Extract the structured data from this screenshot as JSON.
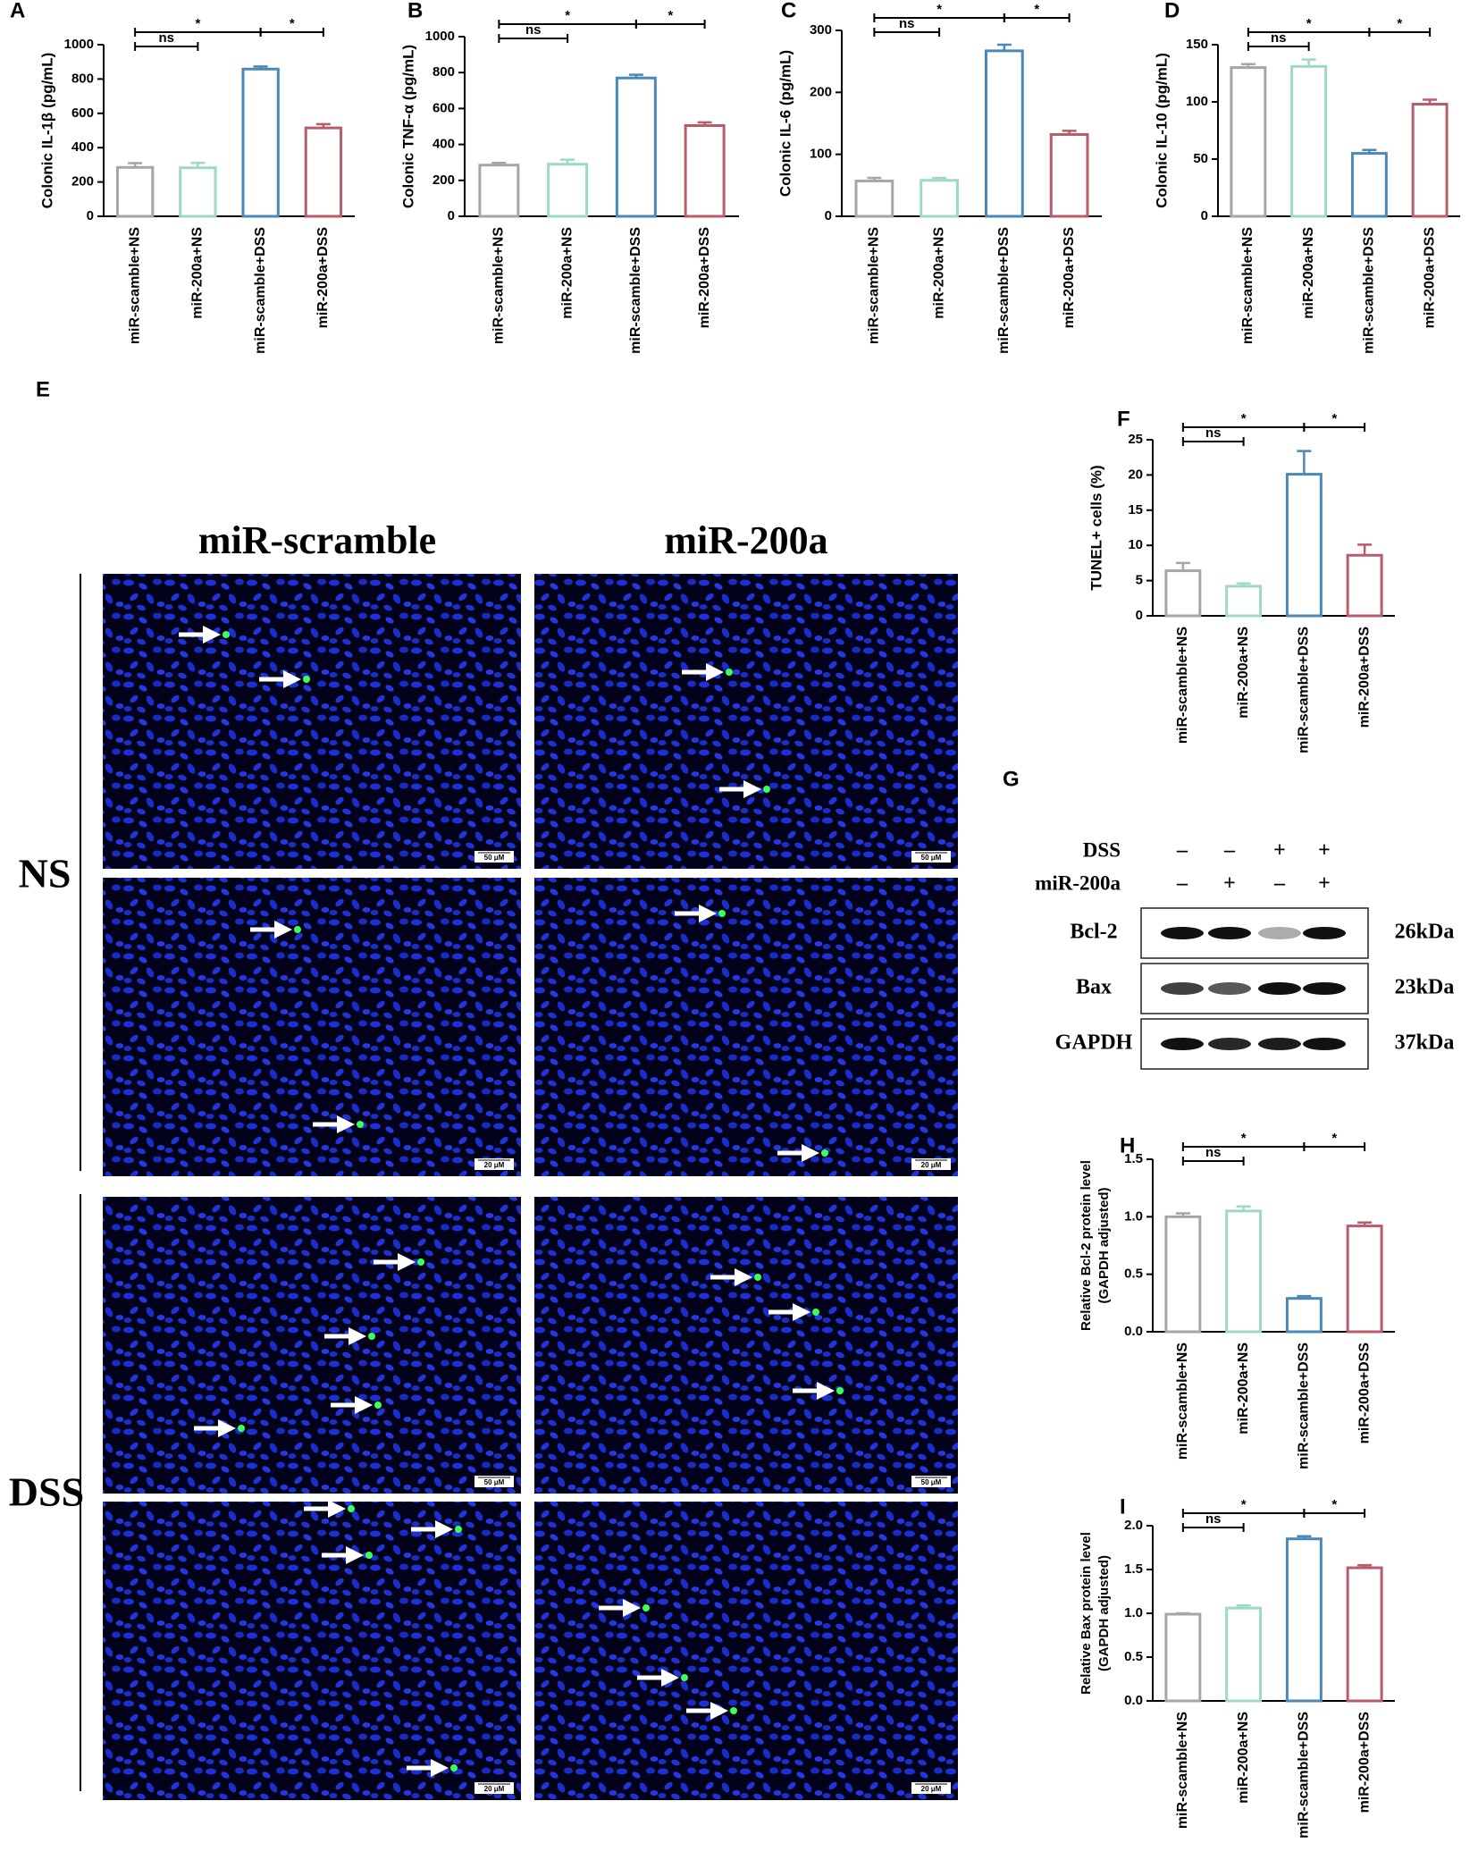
{
  "chart_data": [
    {
      "type": "bar",
      "panel": "A",
      "y_label": [
        "Colonic IL-1β (pg/mL)"
      ],
      "categories": [
        "miR-scamble+NS",
        "miR-200a+NS",
        "miR-scamble+DSS",
        "miR-200a+DSS"
      ],
      "values": [
        285,
        283,
        858,
        515
      ],
      "errors": [
        25,
        28,
        15,
        22
      ],
      "colors": [
        "#a6a6a6",
        "#9dd9c5",
        "#4a88b8",
        "#b85c6a"
      ],
      "ylim": [
        0,
        1000
      ],
      "yticks": [
        0,
        200,
        400,
        600,
        800,
        1000
      ],
      "annotations": [
        "ns",
        "*",
        "*"
      ]
    },
    {
      "type": "bar",
      "panel": "B",
      "y_label": [
        "Colonic TNF-α (pg/mL)"
      ],
      "categories": [
        "miR-scamble+NS",
        "miR-200a+NS",
        "miR-scamble+DSS",
        "miR-200a+DSS"
      ],
      "values": [
        285,
        290,
        770,
        505
      ],
      "errors": [
        12,
        25,
        18,
        18
      ],
      "colors": [
        "#a6a6a6",
        "#9dd9c5",
        "#4a88b8",
        "#b85c6a"
      ],
      "ylim": [
        0,
        1000
      ],
      "yticks": [
        0,
        200,
        400,
        600,
        800,
        1000
      ],
      "annotations": [
        "ns",
        "*",
        "*"
      ]
    },
    {
      "type": "bar",
      "panel": "C",
      "y_label": [
        "Colonic IL-6 (pg/mL)"
      ],
      "categories": [
        "miR-scamble+NS",
        "miR-200a+NS",
        "miR-scamble+DSS",
        "miR-200a+DSS"
      ],
      "values": [
        57,
        58,
        267,
        132
      ],
      "errors": [
        5,
        4,
        10,
        6
      ],
      "colors": [
        "#a6a6a6",
        "#9dd9c5",
        "#4a88b8",
        "#b85c6a"
      ],
      "ylim": [
        0,
        300
      ],
      "yticks": [
        0,
        100,
        200,
        300
      ],
      "annotations": [
        "ns",
        "*",
        "*"
      ]
    },
    {
      "type": "bar",
      "panel": "D",
      "y_label": [
        "Colonic IL-10 (pg/mL)"
      ],
      "categories": [
        "miR-scamble+NS",
        "miR-200a+NS",
        "miR-scamble+DSS",
        "miR-200a+DSS"
      ],
      "values": [
        130,
        131,
        55,
        98
      ],
      "errors": [
        3,
        6,
        3,
        4
      ],
      "colors": [
        "#a6a6a6",
        "#9dd9c5",
        "#4a88b8",
        "#b85c6a"
      ],
      "ylim": [
        0,
        150
      ],
      "yticks": [
        0,
        50,
        100,
        150
      ],
      "annotations": [
        "ns",
        "*",
        "*"
      ]
    },
    {
      "type": "bar",
      "panel": "F",
      "y_label": [
        "TUNEL+ cells (%)"
      ],
      "categories": [
        "miR-scamble+NS",
        "miR-200a+NS",
        "miR-scamble+DSS",
        "miR-200a+DSS"
      ],
      "values": [
        6.4,
        4.2,
        20.1,
        8.6
      ],
      "errors": [
        1.1,
        0.4,
        3.3,
        1.5
      ],
      "colors": [
        "#a6a6a6",
        "#9dd9c5",
        "#4a88b8",
        "#b85c6a"
      ],
      "ylim": [
        0,
        25
      ],
      "yticks": [
        0,
        5,
        10,
        15,
        20,
        25
      ],
      "annotations": [
        "ns",
        "*",
        "*"
      ]
    },
    {
      "type": "bar",
      "panel": "H",
      "y_label": [
        "Relative Bcl-2 protein level",
        "(GAPDH adjusted)"
      ],
      "categories": [
        "miR-scamble+NS",
        "miR-200a+NS",
        "miR-scamble+DSS",
        "miR-200a+DSS"
      ],
      "values": [
        1.0,
        1.05,
        0.29,
        0.92
      ],
      "errors": [
        0.03,
        0.04,
        0.02,
        0.03
      ],
      "colors": [
        "#a6a6a6",
        "#9dd9c5",
        "#4a88b8",
        "#b85c6a"
      ],
      "ylim": [
        0,
        1.5
      ],
      "yticks": [
        {
          "value": 0,
          "label": "0.0"
        },
        0.5,
        {
          "value": 1,
          "label": "1.0"
        },
        1.5
      ],
      "annotations": [
        "ns",
        "*",
        "*"
      ]
    },
    {
      "type": "bar",
      "panel": "I",
      "y_label": [
        "Relative Bax protein level",
        "(GAPDH adjusted)"
      ],
      "categories": [
        "miR-scamble+NS",
        "miR-200a+NS",
        "miR-scamble+DSS",
        "miR-200a+DSS"
      ],
      "values": [
        0.99,
        1.06,
        1.85,
        1.52
      ],
      "errors": [
        0.01,
        0.03,
        0.03,
        0.03
      ],
      "colors": [
        "#a6a6a6",
        "#9dd9c5",
        "#4a88b8",
        "#b85c6a"
      ],
      "ylim": [
        0,
        2
      ],
      "yticks": [
        {
          "value": 0,
          "label": "0.0"
        },
        0.5,
        {
          "value": 1,
          "label": "1.0"
        },
        1.5,
        {
          "value": 2,
          "label": "2.0"
        }
      ],
      "annotations": [
        "ns",
        "*",
        "*"
      ]
    }
  ],
  "panel_e": {
    "label": "E",
    "columns": [
      "miR-scramble",
      "miR-200a"
    ],
    "rows": [
      "NS",
      "DSS"
    ],
    "scale_bars": [
      "50 μM",
      "50 μM",
      "20 μM",
      "20 μM",
      "50 μM",
      "50 μM",
      "20 μM",
      "20 μM"
    ]
  },
  "panel_g": {
    "label": "G",
    "treatments": [
      {
        "name": "DSS",
        "signs": [
          "–",
          "–",
          "+",
          "+"
        ]
      },
      {
        "name": "miR-200a",
        "signs": [
          "–",
          "+",
          "–",
          "+"
        ]
      }
    ],
    "blots": [
      {
        "name": "Bcl-2",
        "size": "26kDa"
      },
      {
        "name": "Bax",
        "size": "23kDa"
      },
      {
        "name": "GAPDH",
        "size": "37kDa"
      }
    ]
  }
}
